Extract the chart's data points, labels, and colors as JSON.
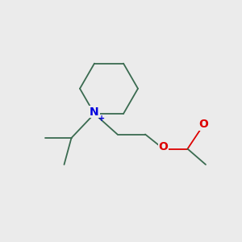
{
  "bg_color": "#ebebeb",
  "bond_color": "#3a6b50",
  "N_color": "#0000dd",
  "O_color": "#dd0000",
  "bond_width": 1.3,
  "font_size_N": 10,
  "font_size_plus": 7,
  "font_size_O": 10,
  "N_label": "N",
  "plus_label": "+",
  "O_label": "O",
  "eq_O_label": "O",
  "fig_width": 3.0,
  "fig_height": 3.0,
  "dpi": 100,
  "xlim": [
    0,
    10
  ],
  "ylim": [
    0,
    10
  ]
}
